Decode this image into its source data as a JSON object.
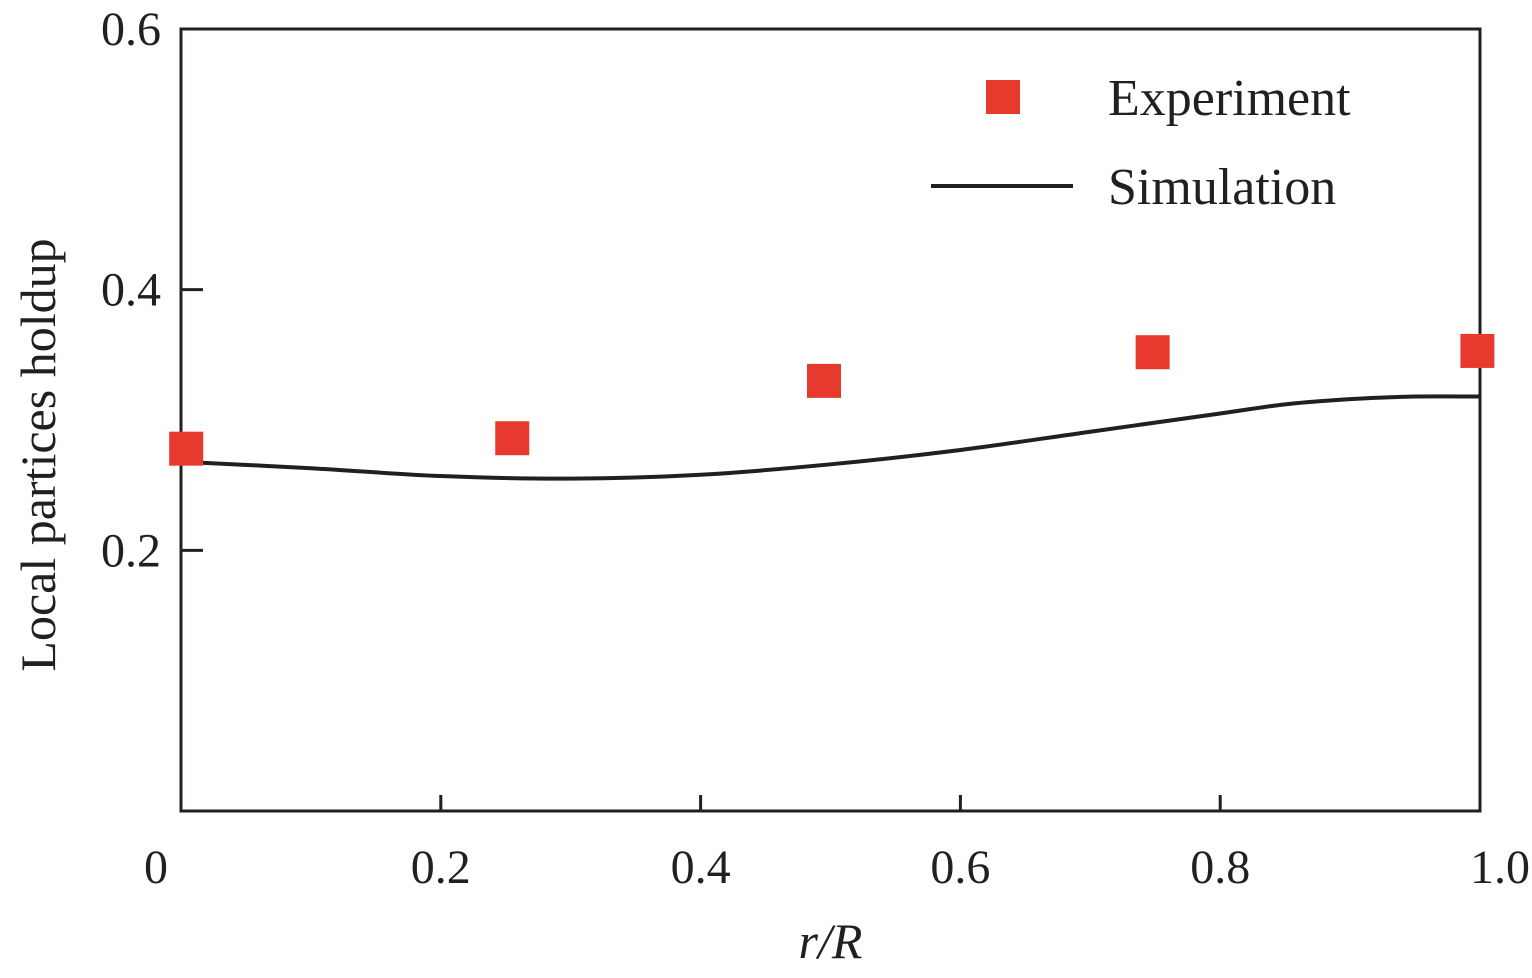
{
  "chart_data": {
    "type": "scatter",
    "title": "",
    "xlabel": "r/R",
    "ylabel": "Local partices holdup",
    "xlim": [
      0,
      1.0
    ],
    "ylim": [
      0,
      0.6
    ],
    "x_ticks": [
      0,
      0.2,
      0.4,
      0.6,
      0.8,
      1.0
    ],
    "x_tick_labels": [
      "0",
      "0.2",
      "0.4",
      "0.6",
      "0.8",
      "1.0"
    ],
    "y_ticks": [
      0.2,
      0.4,
      0.6
    ],
    "y_tick_labels": [
      "0.2",
      "0.4",
      "0.6"
    ],
    "grid": false,
    "legend": "top-right",
    "series": [
      {
        "name": "Experiment",
        "kind": "markers",
        "marker": "square",
        "color": "#e8392f",
        "x": [
          0.004,
          0.255,
          0.495,
          0.748,
          0.998
        ],
        "y": [
          0.278,
          0.286,
          0.33,
          0.352,
          0.353
        ]
      },
      {
        "name": "Simulation",
        "kind": "line",
        "color": "#231f20",
        "x": [
          0.0,
          0.1,
          0.2,
          0.3,
          0.4,
          0.5,
          0.6,
          0.7,
          0.8,
          0.85,
          0.9,
          0.95,
          1.0
        ],
        "y": [
          0.268,
          0.263,
          0.257,
          0.255,
          0.258,
          0.266,
          0.277,
          0.291,
          0.305,
          0.312,
          0.316,
          0.318,
          0.318
        ]
      }
    ]
  }
}
